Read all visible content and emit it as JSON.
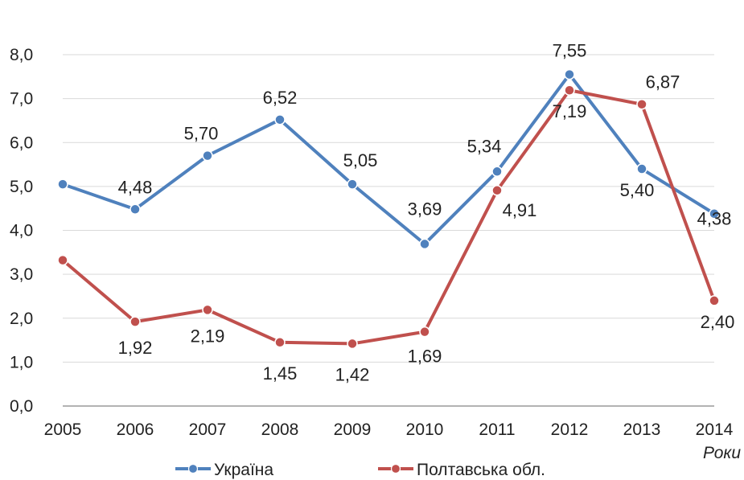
{
  "chart_data": {
    "type": "line",
    "categories": [
      "2005",
      "2006",
      "2007",
      "2008",
      "2009",
      "2010",
      "2011",
      "2012",
      "2013",
      "2014"
    ],
    "ylim": [
      0,
      8
    ],
    "yticks": [
      "0,0",
      "1,0",
      "2,0",
      "3,0",
      "4,0",
      "5,0",
      "6,0",
      "7,0",
      "8,0"
    ],
    "xlabel": "Роки",
    "grid": "horizontal",
    "legend_position": "bottom",
    "series": [
      {
        "name": "Україна",
        "color": "#4F81BD",
        "values": [
          5.05,
          4.48,
          5.7,
          6.52,
          5.05,
          3.69,
          5.34,
          7.55,
          5.4,
          4.38
        ],
        "labels": [
          "",
          "4,48",
          "5,70",
          "6,52",
          "5,05",
          "3,69",
          "5,34",
          "7,55",
          "5,40",
          "4,38"
        ]
      },
      {
        "name": "Полтавська обл.",
        "color": "#C0504D",
        "values": [
          3.32,
          1.92,
          2.19,
          1.45,
          1.42,
          1.69,
          4.91,
          7.19,
          6.87,
          2.4
        ],
        "labels": [
          "",
          "1,92",
          "2,19",
          "1,45",
          "1,42",
          "1,69",
          "4,91",
          "7,19",
          "6,87",
          "2,40"
        ]
      }
    ]
  }
}
